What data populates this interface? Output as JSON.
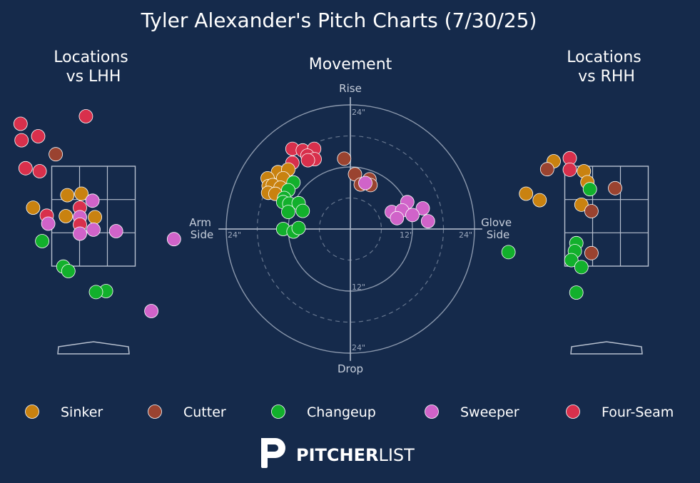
{
  "title": "Tyler Alexander's Pitch Charts (7/30/25)",
  "colors": {
    "background": "#152a4b",
    "grid": "#a9b4c6",
    "zone": "#b7c0cf",
    "Sinker": "#c98210",
    "Cutter": "#9a4330",
    "Changeup": "#12b02c",
    "Sweeper": "#d063c9",
    "Four-Seam": "#d8304c"
  },
  "legend": [
    {
      "name": "Sinker",
      "icon": "sinker-marker-icon"
    },
    {
      "name": "Cutter",
      "icon": "cutter-marker-icon"
    },
    {
      "name": "Changeup",
      "icon": "changeup-marker-icon"
    },
    {
      "name": "Sweeper",
      "icon": "sweeper-marker-icon"
    },
    {
      "name": "Four-Seam",
      "icon": "four-seam-marker-icon"
    }
  ],
  "brand": {
    "part1": "PITCHER",
    "part2": "LIST",
    "icon": "pitcherlist-logo-icon"
  },
  "chart_data": [
    {
      "type": "scatter",
      "id": "lhh",
      "title": "Locations\nvs LHH",
      "xlim": [
        -2.2,
        2.2
      ],
      "ylim": [
        -0.3,
        4.7
      ],
      "strike_zone": {
        "x": [
          -0.83,
          0.83
        ],
        "y": [
          1.5,
          3.5
        ]
      },
      "points": [
        {
          "pitch": "Four-Seam",
          "x": -1.45,
          "y": 4.35
        },
        {
          "pitch": "Four-Seam",
          "x": -0.15,
          "y": 4.5
        },
        {
          "pitch": "Four-Seam",
          "x": -1.43,
          "y": 4.02
        },
        {
          "pitch": "Four-Seam",
          "x": -1.1,
          "y": 4.1
        },
        {
          "pitch": "Cutter",
          "x": -0.75,
          "y": 3.74
        },
        {
          "pitch": "Four-Seam",
          "x": -1.35,
          "y": 3.46
        },
        {
          "pitch": "Four-Seam",
          "x": -1.07,
          "y": 3.4
        },
        {
          "pitch": "Sinker",
          "x": -0.52,
          "y": 2.92
        },
        {
          "pitch": "Sinker",
          "x": -0.24,
          "y": 2.95
        },
        {
          "pitch": "Sweeper",
          "x": -0.02,
          "y": 2.81
        },
        {
          "pitch": "Four-Seam",
          "x": -0.27,
          "y": 2.67
        },
        {
          "pitch": "Sinker",
          "x": -1.2,
          "y": 2.67
        },
        {
          "pitch": "Four-Seam",
          "x": -0.93,
          "y": 2.51
        },
        {
          "pitch": "Sinker",
          "x": -0.55,
          "y": 2.5
        },
        {
          "pitch": "Sweeper",
          "x": -0.27,
          "y": 2.48
        },
        {
          "pitch": "Sinker",
          "x": 0.03,
          "y": 2.48
        },
        {
          "pitch": "Four-Seam",
          "x": -0.27,
          "y": 2.33
        },
        {
          "pitch": "Sweeper",
          "x": -0.9,
          "y": 2.35
        },
        {
          "pitch": "Sweeper",
          "x": 0.0,
          "y": 2.23
        },
        {
          "pitch": "Sweeper",
          "x": -0.27,
          "y": 2.15
        },
        {
          "pitch": "Sweeper",
          "x": 0.45,
          "y": 2.2
        },
        {
          "pitch": "Changeup",
          "x": -1.02,
          "y": 2.0
        },
        {
          "pitch": "Sweeper",
          "x": 1.6,
          "y": 2.04
        },
        {
          "pitch": "Changeup",
          "x": -0.6,
          "y": 1.49
        },
        {
          "pitch": "Changeup",
          "x": -0.5,
          "y": 1.4
        },
        {
          "pitch": "Changeup",
          "x": 0.25,
          "y": 1.0
        },
        {
          "pitch": "Changeup",
          "x": 0.05,
          "y": 0.98
        },
        {
          "pitch": "Sweeper",
          "x": 1.15,
          "y": 0.6
        }
      ]
    },
    {
      "type": "scatter",
      "id": "movement",
      "title": "Movement",
      "xlabel_left": "Arm\nSide",
      "xlabel_right": "Glove\nSide",
      "ylabel_top": "Rise",
      "ylabel_bottom": "Drop",
      "xlim": [
        -24,
        24
      ],
      "ylim": [
        -24,
        24
      ],
      "ring_labels": [
        {
          "text": "24\"",
          "pos": "top"
        },
        {
          "text": "12\"",
          "pos": "bottom-inner"
        },
        {
          "text": "24\"",
          "pos": "bottom"
        },
        {
          "text": "12\"",
          "pos": "right-inner"
        },
        {
          "text": "24\"",
          "pos": "right"
        },
        {
          "text": "24\"",
          "pos": "left"
        }
      ],
      "points": [
        {
          "pitch": "Four-Seam",
          "x": -11.2,
          "y": 15.5
        },
        {
          "pitch": "Four-Seam",
          "x": -9.2,
          "y": 15.2
        },
        {
          "pitch": "Four-Seam",
          "x": -7.0,
          "y": 15.5
        },
        {
          "pitch": "Four-Seam",
          "x": -8.3,
          "y": 14.2
        },
        {
          "pitch": "Four-Seam",
          "x": -6.9,
          "y": 13.5
        },
        {
          "pitch": "Four-Seam",
          "x": -8.2,
          "y": 13.3
        },
        {
          "pitch": "Four-Seam",
          "x": -11.2,
          "y": 12.8
        },
        {
          "pitch": "Cutter",
          "x": -1.2,
          "y": 13.6
        },
        {
          "pitch": "Cutter",
          "x": 0.9,
          "y": 10.6
        },
        {
          "pitch": "Cutter",
          "x": 3.7,
          "y": 9.6
        },
        {
          "pitch": "Cutter",
          "x": 2.0,
          "y": 8.6
        },
        {
          "pitch": "Cutter",
          "x": 3.9,
          "y": 8.5
        },
        {
          "pitch": "Sweeper",
          "x": 2.9,
          "y": 8.9
        },
        {
          "pitch": "Sinker",
          "x": -14.0,
          "y": 11.0
        },
        {
          "pitch": "Sinker",
          "x": -12.0,
          "y": 11.5
        },
        {
          "pitch": "Sinker",
          "x": -16.0,
          "y": 9.8
        },
        {
          "pitch": "Sinker",
          "x": -13.0,
          "y": 9.8
        },
        {
          "pitch": "Sinker",
          "x": -15.8,
          "y": 8.3
        },
        {
          "pitch": "Sinker",
          "x": -15.0,
          "y": 8.5
        },
        {
          "pitch": "Sinker",
          "x": -13.5,
          "y": 8.0
        },
        {
          "pitch": "Sinker",
          "x": -15.9,
          "y": 7.0
        },
        {
          "pitch": "Sinker",
          "x": -14.5,
          "y": 6.8
        },
        {
          "pitch": "Changeup",
          "x": -11.0,
          "y": 9.0
        },
        {
          "pitch": "Changeup",
          "x": -12.0,
          "y": 7.5
        },
        {
          "pitch": "Changeup",
          "x": -12.8,
          "y": 6.0
        },
        {
          "pitch": "Changeup",
          "x": -13.0,
          "y": 5.2
        },
        {
          "pitch": "Changeup",
          "x": -11.8,
          "y": 4.9
        },
        {
          "pitch": "Changeup",
          "x": -10.0,
          "y": 5.0
        },
        {
          "pitch": "Changeup",
          "x": -9.2,
          "y": 3.5
        },
        {
          "pitch": "Changeup",
          "x": -12.0,
          "y": 3.3
        },
        {
          "pitch": "Changeup",
          "x": -13.0,
          "y": 0.0
        },
        {
          "pitch": "Changeup",
          "x": -11.0,
          "y": -0.5
        },
        {
          "pitch": "Changeup",
          "x": -10.0,
          "y": 0.2
        },
        {
          "pitch": "Sweeper",
          "x": 11.0,
          "y": 5.2
        },
        {
          "pitch": "Sweeper",
          "x": 8.0,
          "y": 3.3
        },
        {
          "pitch": "Sweeper",
          "x": 10.0,
          "y": 3.6
        },
        {
          "pitch": "Sweeper",
          "x": 14.0,
          "y": 4.0
        },
        {
          "pitch": "Sweeper",
          "x": 9.0,
          "y": 2.1
        },
        {
          "pitch": "Sweeper",
          "x": 12.0,
          "y": 2.7
        },
        {
          "pitch": "Sweeper",
          "x": 15.0,
          "y": 1.5
        }
      ]
    },
    {
      "type": "scatter",
      "id": "rhh",
      "title": "Locations\nvs RHH",
      "xlim": [
        -2.2,
        2.2
      ],
      "ylim": [
        -0.3,
        4.7
      ],
      "strike_zone": {
        "x": [
          -0.83,
          0.83
        ],
        "y": [
          1.5,
          3.5
        ]
      },
      "points": [
        {
          "pitch": "Sinker",
          "x": -1.05,
          "y": 3.6
        },
        {
          "pitch": "Four-Seam",
          "x": -0.73,
          "y": 3.66
        },
        {
          "pitch": "Cutter",
          "x": -1.18,
          "y": 3.44
        },
        {
          "pitch": "Four-Seam",
          "x": -0.73,
          "y": 3.43
        },
        {
          "pitch": "Sinker",
          "x": -0.45,
          "y": 3.4
        },
        {
          "pitch": "Sinker",
          "x": -0.38,
          "y": 3.18
        },
        {
          "pitch": "Changeup",
          "x": -0.33,
          "y": 3.04
        },
        {
          "pitch": "Cutter",
          "x": 0.17,
          "y": 3.06
        },
        {
          "pitch": "Sinker",
          "x": -1.6,
          "y": 2.95
        },
        {
          "pitch": "Sinker",
          "x": -1.33,
          "y": 2.82
        },
        {
          "pitch": "Sinker",
          "x": -0.5,
          "y": 2.73
        },
        {
          "pitch": "Cutter",
          "x": -0.3,
          "y": 2.6
        },
        {
          "pitch": "Changeup",
          "x": -0.6,
          "y": 1.96
        },
        {
          "pitch": "Changeup",
          "x": -0.63,
          "y": 1.8
        },
        {
          "pitch": "Changeup",
          "x": -1.95,
          "y": 1.78
        },
        {
          "pitch": "Cutter",
          "x": -0.3,
          "y": 1.76
        },
        {
          "pitch": "Changeup",
          "x": -0.7,
          "y": 1.62
        },
        {
          "pitch": "Changeup",
          "x": -0.5,
          "y": 1.48
        },
        {
          "pitch": "Changeup",
          "x": -0.6,
          "y": 0.97
        }
      ]
    }
  ]
}
